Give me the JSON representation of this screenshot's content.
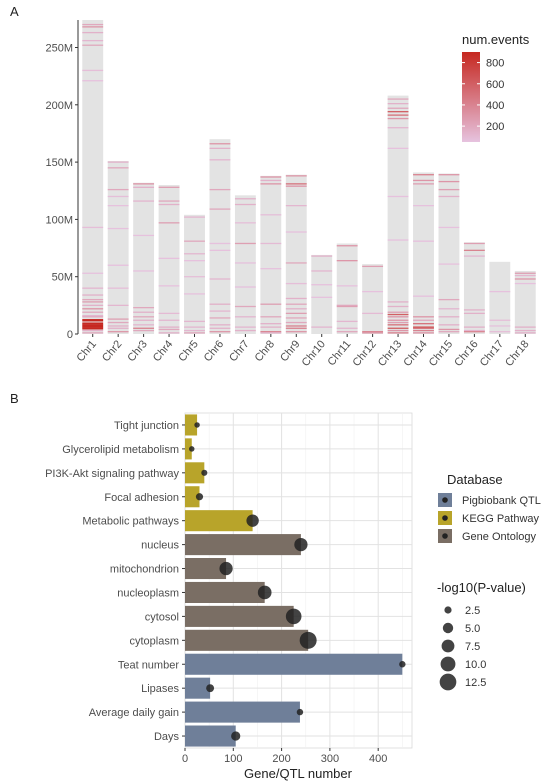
{
  "chart_data": [
    {
      "panel": "A",
      "type": "heatmap",
      "chromosomes": [
        "Chr1",
        "Chr2",
        "Chr3",
        "Chr4",
        "Chr5",
        "Chr6",
        "Chr7",
        "Chr8",
        "Chr9",
        "Chr10",
        "Chr11",
        "Chr12",
        "Chr13",
        "Chr14",
        "Chr15",
        "Chr16",
        "Chr17",
        "Chr18"
      ],
      "lengths": [
        274,
        151,
        132,
        130,
        104,
        170,
        121,
        138,
        139,
        69,
        79,
        61,
        208,
        141,
        140,
        80,
        63,
        55
      ],
      "y_ticks": [
        0,
        50,
        100,
        150,
        200,
        250
      ],
      "y_tick_labels": [
        "0",
        "50M",
        "100M",
        "150M",
        "200M",
        "250M"
      ],
      "ylim": [
        0,
        274
      ],
      "legend_title": "num.events",
      "legend_ticks": [
        200,
        400,
        600,
        800
      ],
      "legend_range": [
        50,
        900
      ],
      "colors": {
        "low": "#e6c3df",
        "high": "#c62820",
        "chrom_bg": "#e3e3e3"
      },
      "events": [
        [
          [
            270,
            200
          ],
          [
            268,
            300
          ],
          [
            263,
            150
          ],
          [
            256,
            120
          ],
          [
            252,
            200
          ],
          [
            230,
            80
          ],
          [
            221,
            60
          ],
          [
            93,
            80
          ],
          [
            53,
            60
          ],
          [
            40,
            120
          ],
          [
            34,
            150
          ],
          [
            30,
            200
          ],
          [
            28,
            250
          ],
          [
            25,
            150
          ],
          [
            22,
            300
          ],
          [
            19,
            200
          ],
          [
            16,
            120
          ],
          [
            15,
            200
          ],
          [
            12,
            900
          ],
          [
            9,
            900
          ],
          [
            7,
            900
          ],
          [
            5,
            900
          ],
          [
            3,
            150
          ],
          [
            1,
            200
          ]
        ],
        [
          [
            150,
            150
          ],
          [
            145,
            200
          ],
          [
            126,
            200
          ],
          [
            120,
            80
          ],
          [
            112,
            60
          ],
          [
            92,
            60
          ],
          [
            60,
            60
          ],
          [
            40,
            80
          ],
          [
            25,
            120
          ],
          [
            13,
            250
          ],
          [
            10,
            200
          ],
          [
            7,
            150
          ],
          [
            5,
            150
          ],
          [
            2,
            300
          ]
        ],
        [
          [
            131,
            300
          ],
          [
            128,
            150
          ],
          [
            116,
            120
          ],
          [
            86,
            60
          ],
          [
            55,
            60
          ],
          [
            23,
            200
          ],
          [
            19,
            150
          ],
          [
            15,
            200
          ],
          [
            12,
            150
          ],
          [
            8,
            120
          ],
          [
            5,
            400
          ],
          [
            3,
            200
          ]
        ],
        [
          [
            128,
            250
          ],
          [
            116,
            200
          ],
          [
            113,
            150
          ],
          [
            97,
            250
          ],
          [
            66,
            60
          ],
          [
            42,
            60
          ],
          [
            18,
            100
          ],
          [
            12,
            120
          ],
          [
            6,
            150
          ],
          [
            4,
            200
          ],
          [
            1,
            150
          ]
        ],
        [
          [
            102,
            120
          ],
          [
            81,
            200
          ],
          [
            70,
            120
          ],
          [
            64,
            60
          ],
          [
            50,
            80
          ],
          [
            35,
            60
          ],
          [
            11,
            120
          ],
          [
            6,
            120
          ],
          [
            3,
            120
          ],
          [
            1,
            200
          ]
        ],
        [
          [
            166,
            300
          ],
          [
            162,
            150
          ],
          [
            152,
            120
          ],
          [
            126,
            200
          ],
          [
            109,
            200
          ],
          [
            79,
            60
          ],
          [
            73,
            60
          ],
          [
            48,
            120
          ],
          [
            26,
            150
          ],
          [
            20,
            120
          ],
          [
            14,
            200
          ],
          [
            8,
            150
          ],
          [
            5,
            150
          ],
          [
            2,
            300
          ]
        ],
        [
          [
            118,
            150
          ],
          [
            113,
            150
          ],
          [
            97,
            80
          ],
          [
            79,
            250
          ],
          [
            62,
            60
          ],
          [
            41,
            60
          ],
          [
            24,
            200
          ],
          [
            15,
            120
          ],
          [
            6,
            120
          ],
          [
            3,
            150
          ]
        ],
        [
          [
            137,
            300
          ],
          [
            134,
            150
          ],
          [
            131,
            300
          ],
          [
            104,
            80
          ],
          [
            79,
            100
          ],
          [
            57,
            60
          ],
          [
            26,
            250
          ],
          [
            15,
            200
          ],
          [
            9,
            150
          ],
          [
            6,
            150
          ],
          [
            2,
            400
          ],
          [
            1,
            150
          ]
        ],
        [
          [
            138,
            300
          ],
          [
            131,
            500
          ],
          [
            129,
            300
          ],
          [
            112,
            120
          ],
          [
            89,
            60
          ],
          [
            62,
            200
          ],
          [
            44,
            80
          ],
          [
            31,
            150
          ],
          [
            26,
            200
          ],
          [
            22,
            150
          ],
          [
            18,
            250
          ],
          [
            14,
            200
          ],
          [
            10,
            200
          ],
          [
            7,
            400
          ],
          [
            5,
            400
          ],
          [
            2,
            300
          ]
        ],
        [
          [
            68,
            150
          ],
          [
            55,
            120
          ],
          [
            43,
            60
          ],
          [
            32,
            60
          ],
          [
            6,
            120
          ]
        ],
        [
          [
            77,
            300
          ],
          [
            64,
            300
          ],
          [
            42,
            60
          ],
          [
            24,
            250
          ],
          [
            25,
            200
          ],
          [
            11,
            120
          ],
          [
            5,
            120
          ],
          [
            2,
            200
          ]
        ],
        [
          [
            59,
            250
          ],
          [
            37,
            60
          ],
          [
            18,
            100
          ],
          [
            2,
            400
          ],
          [
            1,
            300
          ]
        ],
        [
          [
            205,
            200
          ],
          [
            201,
            150
          ],
          [
            197,
            200
          ],
          [
            194,
            600
          ],
          [
            191,
            500
          ],
          [
            188,
            300
          ],
          [
            180,
            120
          ],
          [
            162,
            60
          ],
          [
            120,
            60
          ],
          [
            82,
            60
          ],
          [
            28,
            150
          ],
          [
            24,
            150
          ],
          [
            19,
            250
          ],
          [
            17,
            600
          ],
          [
            15,
            300
          ],
          [
            12,
            300
          ],
          [
            10,
            250
          ],
          [
            8,
            500
          ],
          [
            5,
            600
          ],
          [
            3,
            300
          ],
          [
            1,
            400
          ]
        ],
        [
          [
            139,
            400
          ],
          [
            134,
            300
          ],
          [
            131,
            250
          ],
          [
            112,
            60
          ],
          [
            81,
            60
          ],
          [
            33,
            60
          ],
          [
            15,
            300
          ],
          [
            12,
            200
          ],
          [
            9,
            500
          ],
          [
            6,
            700
          ],
          [
            5,
            500
          ],
          [
            3,
            400
          ],
          [
            1,
            300
          ]
        ],
        [
          [
            139,
            300
          ],
          [
            133,
            300
          ],
          [
            126,
            250
          ],
          [
            120,
            150
          ],
          [
            93,
            60
          ],
          [
            61,
            60
          ],
          [
            30,
            200
          ],
          [
            22,
            120
          ],
          [
            15,
            150
          ],
          [
            8,
            150
          ],
          [
            4,
            300
          ],
          [
            2,
            200
          ]
        ],
        [
          [
            79,
            250
          ],
          [
            73,
            400
          ],
          [
            68,
            120
          ],
          [
            21,
            150
          ],
          [
            18,
            150
          ],
          [
            6,
            150
          ],
          [
            3,
            120
          ],
          [
            2,
            400
          ]
        ],
        [
          [
            37,
            60
          ],
          [
            12,
            80
          ],
          [
            7,
            60
          ],
          [
            2,
            80
          ]
        ],
        [
          [
            53,
            250
          ],
          [
            51,
            120
          ],
          [
            48,
            300
          ],
          [
            44,
            60
          ],
          [
            6,
            150
          ],
          [
            3,
            150
          ],
          [
            1,
            150
          ]
        ]
      ]
    },
    {
      "panel": "B",
      "type": "bar",
      "orientation": "horizontal",
      "categories": [
        "Tight junction",
        "Glycerolipid metabolism",
        "PI3K-Akt signaling pathway",
        "Focal adhesion",
        "Metabolic pathways",
        "nucleus",
        "mitochondrion",
        "nucleoplasm",
        "cytosol",
        "cytoplasm",
        "Teat number",
        "Lipases",
        "Average daily gain",
        "Days"
      ],
      "values": [
        25,
        14,
        40,
        30,
        140,
        240,
        85,
        165,
        225,
        255,
        450,
        52,
        238,
        105
      ],
      "database": [
        "KEGG Pathway",
        "KEGG Pathway",
        "KEGG Pathway",
        "KEGG Pathway",
        "KEGG Pathway",
        "Gene Ontology",
        "Gene Ontology",
        "Gene Ontology",
        "Gene Ontology",
        "Gene Ontology",
        "Pigbiobank QTL",
        "Pigbiobank QTL",
        "Pigbiobank QTL",
        "Pigbiobank QTL"
      ],
      "neg_log10_p": [
        1.5,
        1.5,
        1.8,
        2.5,
        7.0,
        8.0,
        8.0,
        8.5,
        11.0,
        13.0,
        2.0,
        3.0,
        2.0,
        4.0
      ],
      "xlabel": "Gene/QTL number",
      "xlim": [
        0,
        470
      ],
      "x_ticks": [
        0,
        100,
        200,
        300,
        400
      ],
      "colors": {
        "Pigbiobank QTL": "#6f7f99",
        "KEGG Pathway": "#b8a42a",
        "Gene Ontology": "#7a6e64"
      },
      "legend_database_title": "Database",
      "legend_database": [
        "Pigbiobank QTL",
        "KEGG Pathway",
        "Gene Ontology"
      ],
      "legend_size_title": "-log10(P-value)",
      "legend_size_values": [
        2.5,
        5.0,
        7.5,
        10.0,
        12.5
      ],
      "legend_size_labels": [
        "2.5",
        "5.0",
        "7.5",
        "10.0",
        "12.5"
      ]
    }
  ]
}
